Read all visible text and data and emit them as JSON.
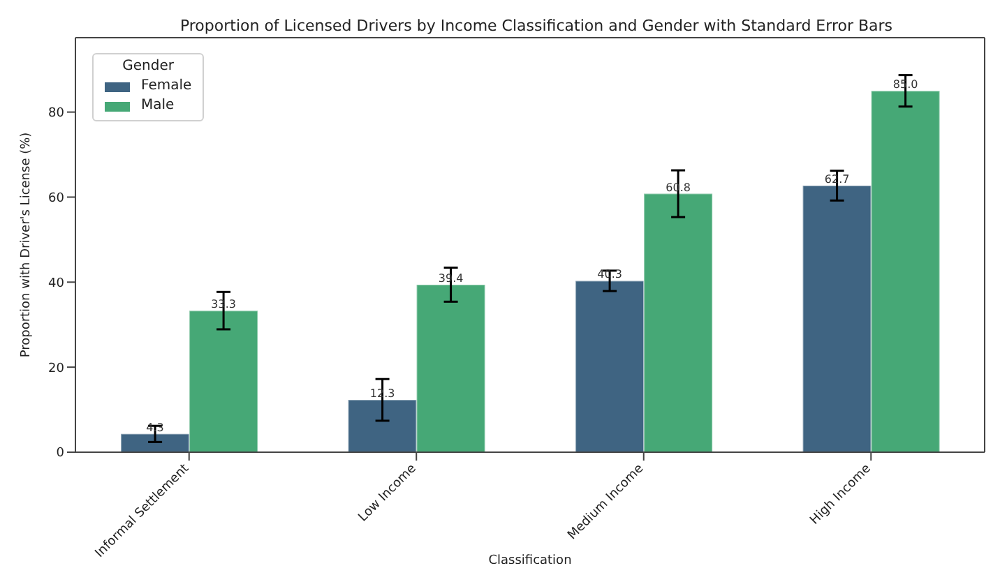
{
  "chart_data": {
    "type": "bar",
    "title": "Proportion of Licensed Drivers by Income Classification and Gender with Standard Error Bars",
    "xlabel": "Classification",
    "ylabel": "Proportion with Driver's License (%)",
    "legend_title": "Gender",
    "categories": [
      "Informal Settlement",
      "Low Income",
      "Medium Income",
      "High Income"
    ],
    "series": [
      {
        "name": "Female",
        "color": "#3f6482",
        "values": [
          4.3,
          12.3,
          40.3,
          62.7
        ],
        "errors": [
          1.9,
          4.9,
          2.4,
          3.5
        ],
        "value_labels": [
          "4.3",
          "12.3",
          "40.3",
          "62.7"
        ]
      },
      {
        "name": "Male",
        "color": "#46a876",
        "values": [
          33.3,
          39.4,
          60.8,
          85.0
        ],
        "errors": [
          4.4,
          4.0,
          5.5,
          3.7
        ],
        "value_labels": [
          "33.3",
          "39.4",
          "60.8",
          "85.0"
        ]
      }
    ],
    "ylim": [
      0,
      97.5
    ],
    "yticks": [
      0,
      20,
      40,
      60,
      80
    ],
    "legend": "top left",
    "grid": false
  }
}
